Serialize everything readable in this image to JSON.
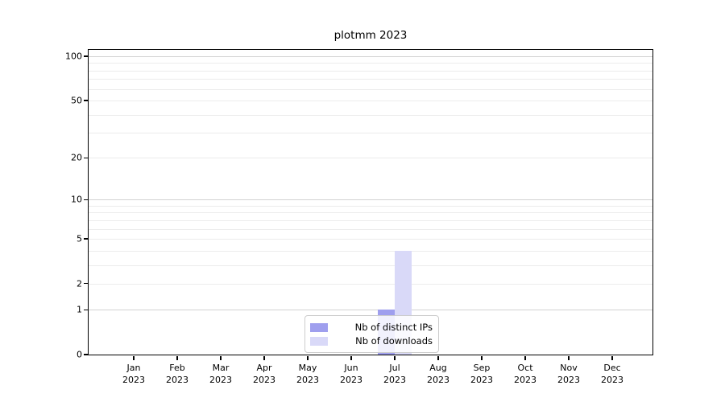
{
  "window": {
    "background": "#ffffff"
  },
  "chart_data": {
    "type": "bar",
    "title": "plotmm 2023",
    "categories": [
      {
        "month": "Jan",
        "year": "2023"
      },
      {
        "month": "Feb",
        "year": "2023"
      },
      {
        "month": "Mar",
        "year": "2023"
      },
      {
        "month": "Apr",
        "year": "2023"
      },
      {
        "month": "May",
        "year": "2023"
      },
      {
        "month": "Jun",
        "year": "2023"
      },
      {
        "month": "Jul",
        "year": "2023"
      },
      {
        "month": "Aug",
        "year": "2023"
      },
      {
        "month": "Sep",
        "year": "2023"
      },
      {
        "month": "Oct",
        "year": "2023"
      },
      {
        "month": "Nov",
        "year": "2023"
      },
      {
        "month": "Dec",
        "year": "2023"
      }
    ],
    "series": [
      {
        "name": "Nb of distinct IPs",
        "color": "#9f9fee",
        "values": [
          0,
          0,
          0,
          0,
          0,
          0,
          1,
          0,
          0,
          0,
          0,
          0
        ]
      },
      {
        "name": "Nb of downloads",
        "color": "#d9d9f8",
        "values": [
          0,
          0,
          0,
          0,
          0,
          0,
          4,
          0,
          0,
          0,
          0,
          0
        ]
      }
    ],
    "xlabel": "",
    "ylabel": "",
    "y_scale": "log1p",
    "y_ticks": [
      0,
      1,
      2,
      5,
      10,
      20,
      50,
      100
    ],
    "y_gridlines_major": [
      1,
      10,
      100
    ],
    "y_gridlines_minor": [
      2,
      3,
      4,
      5,
      6,
      7,
      8,
      9,
      20,
      30,
      40,
      50,
      60,
      70,
      80,
      90
    ],
    "ylim": [
      0,
      110
    ],
    "grid": true,
    "legend_position": "lower center",
    "colors": {
      "grid_major": "#d2d2d2",
      "grid_minor": "#ececec",
      "spine": "#000000",
      "text": "#000000",
      "legend_border": "#cccccc"
    }
  }
}
